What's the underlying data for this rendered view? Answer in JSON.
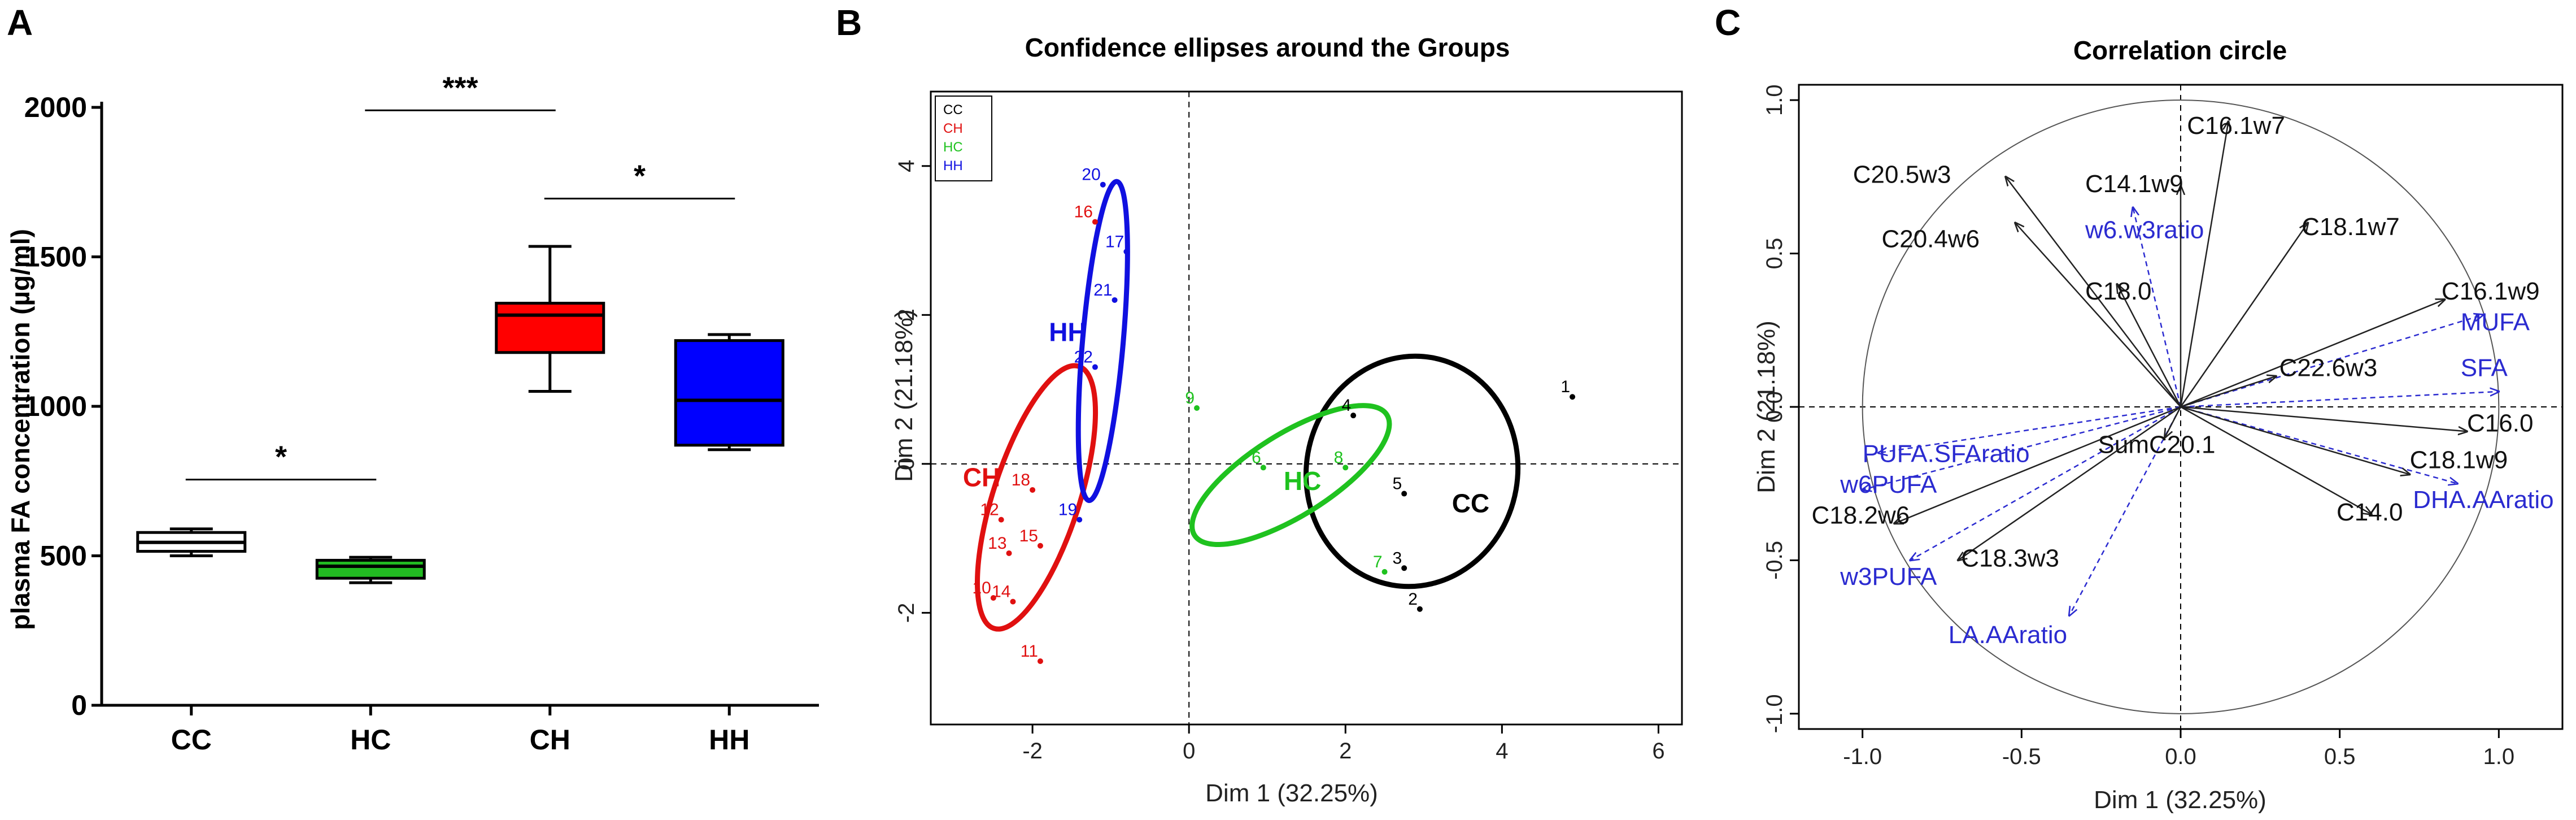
{
  "panels": {
    "A": {
      "letter": "A",
      "ylabel": "plasma FA concentration  (µg/ml)",
      "yticks": [
        "0",
        "500",
        "1000",
        "1500",
        "2000"
      ]
    },
    "B": {
      "letter": "B",
      "title": "Confidence ellipses around the Groups",
      "xlabel": "Dim 1 (32.25%)",
      "ylabel": "Dim 2 (21.18%)",
      "xticks": [
        "-2",
        "0",
        "2",
        "4",
        "6"
      ],
      "yticks": [
        "-2",
        "0",
        "2",
        "4"
      ],
      "legend": [
        "CC",
        "CH",
        "HC",
        "HH"
      ]
    },
    "C": {
      "letter": "C",
      "title": "Correlation circle",
      "xlabel": "Dim 1 (32.25%)",
      "ylabel": "Dim 2 (21.18%)",
      "xticks": [
        "-1.0",
        "-0.5",
        "0.0",
        "0.5",
        "1.0"
      ],
      "yticks": [
        "-1.0",
        "-0.5",
        "0.0",
        "0.5",
        "1.0"
      ]
    }
  },
  "colors": {
    "CC": "#000000",
    "CH": "#e01010",
    "HC": "#1fc21f",
    "HH": "#1010e0",
    "supp": "#2b2bd0"
  },
  "chart_data": [
    {
      "type": "box",
      "panel": "A",
      "categories": [
        "CC",
        "HC",
        "CH",
        "HH"
      ],
      "colors": [
        "#ffffff",
        "#22bb22",
        "#ff0000",
        "#0000ff"
      ],
      "boxes": [
        {
          "min": 500,
          "q1": 515,
          "median": 545,
          "q3": 578,
          "max": 590
        },
        {
          "min": 410,
          "q1": 425,
          "median": 465,
          "q3": 485,
          "max": 495
        },
        {
          "min": 1050,
          "q1": 1180,
          "median": 1305,
          "q3": 1345,
          "max": 1535
        },
        {
          "min": 855,
          "q1": 870,
          "median": 1020,
          "q3": 1220,
          "max": 1240
        }
      ],
      "ylim": [
        0,
        2000
      ],
      "ylabel": "plasma FA concentration  (µg/ml)",
      "significance": [
        {
          "from": "CC",
          "to": "HC",
          "label": "*",
          "y": 755
        },
        {
          "from": "HC",
          "to": "CH",
          "label": "***",
          "y": 1990
        },
        {
          "from": "CH",
          "to": "HH",
          "label": "*",
          "y": 1695
        }
      ]
    },
    {
      "type": "scatter",
      "panel": "B",
      "title": "Confidence ellipses around the Groups",
      "xlabel": "Dim 1 (32.25%)",
      "ylabel": "Dim 2 (21.18%)",
      "xlim": [
        -3.3,
        6.3
      ],
      "ylim": [
        -3.5,
        5.0
      ],
      "legend": [
        "CC",
        "CH",
        "HC",
        "HH"
      ],
      "legend_position": "top-left",
      "points": [
        {
          "label": "1",
          "x": 4.9,
          "y": 0.9,
          "group": "CC"
        },
        {
          "label": "2",
          "x": 2.95,
          "y": -1.95,
          "group": "CC"
        },
        {
          "label": "3",
          "x": 2.75,
          "y": -1.4,
          "group": "CC"
        },
        {
          "label": "4",
          "x": 2.1,
          "y": 0.65,
          "group": "CC"
        },
        {
          "label": "5",
          "x": 2.75,
          "y": -0.4,
          "group": "CC"
        },
        {
          "label": "6",
          "x": 0.95,
          "y": -0.05,
          "group": "HC"
        },
        {
          "label": "7",
          "x": 2.5,
          "y": -1.45,
          "group": "HC"
        },
        {
          "label": "8",
          "x": 2.0,
          "y": -0.05,
          "group": "HC"
        },
        {
          "label": "9",
          "x": 0.1,
          "y": 0.75,
          "group": "HC"
        },
        {
          "label": "10",
          "x": -2.5,
          "y": -1.8,
          "group": "CH"
        },
        {
          "label": "11",
          "x": -1.9,
          "y": -2.65,
          "group": "CH"
        },
        {
          "label": "12",
          "x": -2.4,
          "y": -0.75,
          "group": "CH"
        },
        {
          "label": "13",
          "x": -2.3,
          "y": -1.2,
          "group": "CH"
        },
        {
          "label": "14",
          "x": -2.25,
          "y": -1.85,
          "group": "CH"
        },
        {
          "label": "15",
          "x": -1.9,
          "y": -1.1,
          "group": "CH"
        },
        {
          "label": "16",
          "x": -1.2,
          "y": 3.25,
          "group": "CH"
        },
        {
          "label": "17",
          "x": -0.8,
          "y": 2.85,
          "group": "HH"
        },
        {
          "label": "18",
          "x": -2.0,
          "y": -0.35,
          "group": "CH"
        },
        {
          "label": "19",
          "x": -1.4,
          "y": -0.75,
          "group": "HH"
        },
        {
          "label": "20",
          "x": -1.1,
          "y": 3.75,
          "group": "HH"
        },
        {
          "label": "21",
          "x": -0.95,
          "y": 2.2,
          "group": "HH"
        },
        {
          "label": "22",
          "x": -1.2,
          "y": 1.3,
          "group": "HH"
        }
      ],
      "ellipses": [
        {
          "group": "CC",
          "cx": 2.85,
          "cy": -0.1,
          "rx": 1.35,
          "ry": 1.55,
          "angle": 10
        },
        {
          "group": "HC",
          "cx": 1.3,
          "cy": -0.15,
          "rx": 1.45,
          "ry": 0.55,
          "angle": -32
        },
        {
          "group": "CH",
          "cx": -1.95,
          "cy": -0.45,
          "rx": 0.55,
          "ry": 1.85,
          "angle": 18
        },
        {
          "group": "HH",
          "cx": -1.1,
          "cy": 1.65,
          "rx": 0.26,
          "ry": 2.15,
          "angle": 5
        }
      ],
      "group_labels": [
        {
          "text": "CC",
          "x": 3.6,
          "y": -0.65,
          "group": "CC"
        },
        {
          "text": "HC",
          "x": 1.45,
          "y": -0.35,
          "group": "HC"
        },
        {
          "text": "CH",
          "x": -2.65,
          "y": -0.3,
          "group": "CH"
        },
        {
          "text": "HH",
          "x": -1.55,
          "y": 1.65,
          "group": "HH"
        }
      ]
    },
    {
      "type": "correlation_circle",
      "panel": "C",
      "title": "Correlation circle",
      "xlabel": "Dim 1 (32.25%)",
      "ylabel": "Dim 2 (21.18%)",
      "xlim": [
        -1.2,
        1.2
      ],
      "ylim": [
        -1.05,
        1.05
      ],
      "active_variables": [
        {
          "name": "C16.1w7",
          "x": 0.15,
          "y": 0.93,
          "lx": 0.02,
          "ly": 0.89
        },
        {
          "name": "C14.1w9",
          "x": 0.0,
          "y": 0.72,
          "lx": -0.3,
          "ly": 0.7
        },
        {
          "name": "C20.5w3",
          "x": -0.55,
          "y": 0.75,
          "lx": -1.03,
          "ly": 0.73
        },
        {
          "name": "C20.4w6",
          "x": -0.52,
          "y": 0.6,
          "lx": -0.94,
          "ly": 0.52
        },
        {
          "name": "C18.1w7",
          "x": 0.4,
          "y": 0.6,
          "lx": 0.38,
          "ly": 0.56
        },
        {
          "name": "C18.0",
          "x": -0.2,
          "y": 0.4,
          "lx": -0.3,
          "ly": 0.35
        },
        {
          "name": "C16.1w9",
          "x": 0.83,
          "y": 0.35,
          "lx": 0.82,
          "ly": 0.35
        },
        {
          "name": "C22.6w3",
          "x": 0.3,
          "y": 0.1,
          "lx": 0.31,
          "ly": 0.1
        },
        {
          "name": "C16.0",
          "x": 0.9,
          "y": -0.08,
          "lx": 0.9,
          "ly": -0.08
        },
        {
          "name": "C18.1w9",
          "x": 0.72,
          "y": -0.22,
          "lx": 0.72,
          "ly": -0.2
        },
        {
          "name": "C14.0",
          "x": 0.6,
          "y": -0.35,
          "lx": 0.49,
          "ly": -0.37
        },
        {
          "name": "SumC20.1",
          "x": -0.05,
          "y": -0.1,
          "lx": -0.26,
          "ly": -0.15
        },
        {
          "name": "C18.2w6",
          "x": -0.9,
          "y": -0.38,
          "lx": -1.16,
          "ly": -0.38
        },
        {
          "name": "C18.3w3",
          "x": -0.7,
          "y": -0.5,
          "lx": -0.69,
          "ly": -0.52
        }
      ],
      "supplementary_variables": [
        {
          "name": "w6.w3ratio",
          "x": -0.15,
          "y": 0.65,
          "lx": -0.3,
          "ly": 0.55
        },
        {
          "name": "MUFA",
          "x": 0.95,
          "y": 0.3,
          "lx": 0.88,
          "ly": 0.25
        },
        {
          "name": "SFA",
          "x": 1.0,
          "y": 0.05,
          "lx": 0.88,
          "ly": 0.1
        },
        {
          "name": "DHA.AAratio",
          "x": 0.87,
          "y": -0.25,
          "lx": 0.73,
          "ly": -0.33
        },
        {
          "name": "PUFA.SFAratio",
          "x": -0.95,
          "y": -0.15,
          "lx": -1.0,
          "ly": -0.18
        },
        {
          "name": "w6PUFA",
          "x": -1.0,
          "y": -0.27,
          "lx": -1.07,
          "ly": -0.28
        },
        {
          "name": "w3PUFA",
          "x": -0.85,
          "y": -0.5,
          "lx": -1.07,
          "ly": -0.58
        },
        {
          "name": "LA.AAratio",
          "x": -0.35,
          "y": -0.68,
          "lx": -0.73,
          "ly": -0.77
        }
      ]
    }
  ]
}
